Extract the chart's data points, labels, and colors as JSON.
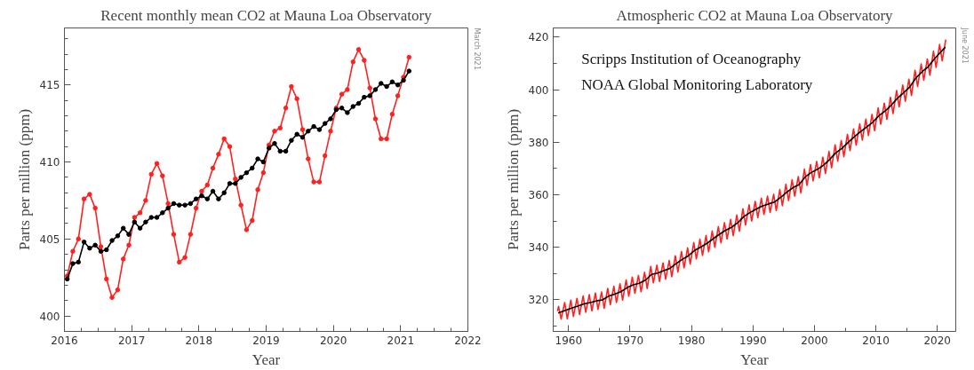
{
  "chart_data": [
    {
      "type": "line",
      "title": "Recent monthly mean CO2 at Mauna Loa Observatory",
      "xlabel": "Year",
      "ylabel": "Parts per million (ppm)",
      "xlim": [
        2016,
        2022
      ],
      "ylim": [
        399,
        418.7
      ],
      "xticks": [
        2016,
        2017,
        2018,
        2019,
        2020,
        2021,
        2022
      ],
      "yticks": [
        400,
        405,
        410,
        415
      ],
      "marker": "circle",
      "grid": false,
      "annotations": [
        "March 2021"
      ],
      "series": [
        {
          "color": "#ff2020",
          "x": [
            2016.042,
            2016.125,
            2016.208,
            2016.292,
            2016.375,
            2016.458,
            2016.542,
            2016.625,
            2016.708,
            2016.792,
            2016.875,
            2016.958,
            2017.042,
            2017.125,
            2017.208,
            2017.292,
            2017.375,
            2017.458,
            2017.542,
            2017.625,
            2017.708,
            2017.792,
            2017.875,
            2017.958,
            2018.042,
            2018.125,
            2018.208,
            2018.292,
            2018.375,
            2018.458,
            2018.542,
            2018.625,
            2018.708,
            2018.792,
            2018.875,
            2018.958,
            2019.042,
            2019.125,
            2019.208,
            2019.292,
            2019.375,
            2019.458,
            2019.542,
            2019.625,
            2019.708,
            2019.792,
            2019.875,
            2019.958,
            2020.042,
            2020.125,
            2020.208,
            2020.292,
            2020.375,
            2020.458,
            2020.542,
            2020.625,
            2020.708,
            2020.792,
            2020.875,
            2020.958,
            2021.042,
            2021.125
          ],
          "values": [
            402.6,
            404.2,
            405.0,
            407.6,
            407.9,
            407.0,
            404.5,
            402.4,
            401.2,
            401.7,
            403.7,
            404.6,
            406.4,
            406.7,
            407.5,
            409.2,
            409.9,
            409.1,
            407.3,
            405.3,
            403.5,
            403.8,
            405.3,
            407.0,
            408.1,
            408.5,
            409.6,
            410.5,
            411.5,
            411.0,
            408.9,
            407.2,
            405.6,
            406.2,
            408.2,
            409.3,
            411.1,
            412.0,
            412.2,
            413.5,
            414.9,
            414.1,
            412.1,
            410.2,
            408.7,
            408.7,
            410.4,
            412.0,
            413.5,
            414.4,
            414.7,
            416.5,
            417.3,
            416.6,
            414.8,
            412.8,
            411.5,
            411.5,
            413.1,
            414.3,
            415.5,
            416.8
          ]
        },
        {
          "color": "#000000",
          "x": [
            2016.042,
            2016.125,
            2016.208,
            2016.292,
            2016.375,
            2016.458,
            2016.542,
            2016.625,
            2016.708,
            2016.792,
            2016.875,
            2016.958,
            2017.042,
            2017.125,
            2017.208,
            2017.292,
            2017.375,
            2017.458,
            2017.542,
            2017.625,
            2017.708,
            2017.792,
            2017.875,
            2017.958,
            2018.042,
            2018.125,
            2018.208,
            2018.292,
            2018.375,
            2018.458,
            2018.542,
            2018.625,
            2018.708,
            2018.792,
            2018.875,
            2018.958,
            2019.042,
            2019.125,
            2019.208,
            2019.292,
            2019.375,
            2019.458,
            2019.542,
            2019.625,
            2019.708,
            2019.792,
            2019.875,
            2019.958,
            2020.042,
            2020.125,
            2020.208,
            2020.292,
            2020.375,
            2020.458,
            2020.542,
            2020.625,
            2020.708,
            2020.792,
            2020.875,
            2020.958,
            2021.042,
            2021.125
          ],
          "values": [
            402.4,
            403.4,
            403.5,
            404.8,
            404.4,
            404.6,
            404.2,
            404.3,
            404.9,
            405.2,
            405.7,
            405.3,
            406.1,
            405.7,
            406.1,
            406.4,
            406.4,
            406.7,
            407.0,
            407.3,
            407.2,
            407.2,
            407.3,
            407.6,
            407.8,
            407.6,
            408.1,
            407.6,
            408.0,
            408.6,
            408.6,
            409.0,
            409.3,
            409.6,
            410.2,
            410.0,
            410.9,
            411.2,
            410.7,
            410.7,
            411.4,
            411.8,
            411.6,
            412.0,
            412.3,
            412.1,
            412.5,
            412.8,
            413.4,
            413.5,
            413.2,
            413.6,
            413.8,
            414.2,
            414.3,
            414.7,
            415.1,
            414.9,
            415.2,
            415.0,
            415.3,
            415.9
          ]
        }
      ]
    },
    {
      "type": "line",
      "title": "Atmospheric CO2 at Mauna Loa Observatory",
      "xlabel": "Year",
      "ylabel": "Parts per million (ppm)",
      "xlim": [
        1957.5,
        2023
      ],
      "ylim": [
        308,
        423.5
      ],
      "xticks": [
        1960,
        1970,
        1980,
        1990,
        2000,
        2010,
        2020
      ],
      "yticks": [
        320,
        340,
        360,
        380,
        400,
        420
      ],
      "grid": false,
      "annotations": [
        "Scripps Institution of Oceanography",
        "NOAA Global Monitoring Laboratory",
        "June 2021"
      ],
      "series": [
        {
          "color": "#ff2020",
          "x": [
            1958.2,
            1958.37,
            1958.79,
            1959.37,
            1959.79,
            1960.37,
            1960.79,
            1961.37,
            1961.79,
            1962.37,
            1962.79,
            1963.37,
            1963.79,
            1964.37,
            1964.79,
            1965.37,
            1965.79,
            1966.37,
            1966.79,
            1967.37,
            1967.79,
            1968.37,
            1968.79,
            1969.37,
            1969.79,
            1970.37,
            1970.79,
            1971.37,
            1971.79,
            1972.37,
            1972.79,
            1973.37,
            1973.79,
            1974.37,
            1974.79,
            1975.37,
            1975.79,
            1976.37,
            1976.79,
            1977.37,
            1977.79,
            1978.37,
            1978.79,
            1979.37,
            1979.79,
            1980.37,
            1980.79,
            1981.37,
            1981.79,
            1982.37,
            1982.79,
            1983.37,
            1983.79,
            1984.37,
            1984.79,
            1985.37,
            1985.79,
            1986.37,
            1986.79,
            1987.37,
            1987.79,
            1988.37,
            1988.79,
            1989.37,
            1989.79,
            1990.37,
            1990.79,
            1991.37,
            1991.79,
            1992.37,
            1992.79,
            1993.37,
            1993.79,
            1994.37,
            1994.79,
            1995.37,
            1995.79,
            1996.37,
            1996.79,
            1997.37,
            1997.79,
            1998.37,
            1998.79,
            1999.37,
            1999.79,
            2000.37,
            2000.79,
            2001.37,
            2001.79,
            2002.37,
            2002.79,
            2003.37,
            2003.79,
            2004.37,
            2004.79,
            2005.37,
            2005.79,
            2006.37,
            2006.79,
            2007.37,
            2007.79,
            2008.37,
            2008.79,
            2009.37,
            2009.79,
            2010.37,
            2010.79,
            2011.37,
            2011.79,
            2012.37,
            2012.79,
            2013.37,
            2013.79,
            2014.37,
            2014.79,
            2015.37,
            2015.79,
            2016.37,
            2016.79,
            2017.37,
            2017.79,
            2018.37,
            2018.79,
            2019.37,
            2019.79,
            2020.37,
            2020.79,
            2021.37
          ],
          "values": [
            315.7,
            317.5,
            312.7,
            319.0,
            312.8,
            319.9,
            313.7,
            320.6,
            314.4,
            321.5,
            315.3,
            322.0,
            315.8,
            322.6,
            316.4,
            323.0,
            316.8,
            324.4,
            318.2,
            325.2,
            319.0,
            326.1,
            319.9,
            327.6,
            321.4,
            328.7,
            322.5,
            329.3,
            323.1,
            330.5,
            324.3,
            332.7,
            326.5,
            333.2,
            327.0,
            334.1,
            327.9,
            335.0,
            328.8,
            336.8,
            330.6,
            338.4,
            332.2,
            339.8,
            333.6,
            341.8,
            335.6,
            343.1,
            336.9,
            344.5,
            338.3,
            346.2,
            340.0,
            347.9,
            341.7,
            349.4,
            343.2,
            350.6,
            344.4,
            352.3,
            346.1,
            354.7,
            348.5,
            356.2,
            350.0,
            357.5,
            351.3,
            358.7,
            352.5,
            359.5,
            353.3,
            360.2,
            354.0,
            362.0,
            355.8,
            364.0,
            357.8,
            365.7,
            359.5,
            366.9,
            360.7,
            369.8,
            363.6,
            371.5,
            365.3,
            372.7,
            366.5,
            374.3,
            368.1,
            376.5,
            370.3,
            379.0,
            372.8,
            380.7,
            374.5,
            383.0,
            376.8,
            385.1,
            378.9,
            387.0,
            380.8,
            388.8,
            382.6,
            390.6,
            384.4,
            393.1,
            386.9,
            394.9,
            388.7,
            397.1,
            390.9,
            399.7,
            393.5,
            401.8,
            395.6,
            404.0,
            397.8,
            407.4,
            401.2,
            409.8,
            403.6,
            411.7,
            405.5,
            414.7,
            408.5,
            417.2,
            411.0,
            419.1
          ]
        },
        {
          "color": "#000000",
          "x": [
            1958.3,
            1959.5,
            1960.5,
            1961.5,
            1962.5,
            1963.5,
            1964.5,
            1965.5,
            1966.5,
            1967.5,
            1968.5,
            1969.5,
            1970.5,
            1971.5,
            1972.5,
            1973.5,
            1974.5,
            1975.5,
            1976.5,
            1977.5,
            1978.5,
            1979.5,
            1980.5,
            1981.5,
            1982.5,
            1983.5,
            1984.5,
            1985.5,
            1986.5,
            1987.5,
            1988.5,
            1989.5,
            1990.5,
            1991.5,
            1992.5,
            1993.5,
            1994.5,
            1995.5,
            1996.5,
            1997.5,
            1998.5,
            1999.5,
            2000.5,
            2001.5,
            2002.5,
            2003.5,
            2004.5,
            2005.5,
            2006.5,
            2007.5,
            2008.5,
            2009.5,
            2010.5,
            2011.5,
            2012.5,
            2013.5,
            2014.5,
            2015.5,
            2016.5,
            2017.5,
            2018.5,
            2019.5,
            2020.5,
            2021.3
          ],
          "values": [
            315.0,
            316.0,
            316.9,
            317.6,
            318.5,
            319.0,
            319.6,
            320.0,
            321.4,
            322.2,
            323.1,
            324.6,
            325.7,
            326.3,
            327.5,
            329.7,
            330.2,
            331.1,
            332.0,
            333.8,
            335.4,
            336.8,
            338.8,
            340.1,
            341.5,
            343.2,
            344.9,
            346.4,
            347.6,
            349.3,
            351.7,
            353.2,
            354.5,
            355.7,
            356.5,
            357.2,
            359.0,
            361.0,
            362.7,
            363.9,
            366.8,
            368.5,
            369.7,
            371.3,
            373.5,
            376.0,
            377.7,
            380.0,
            382.1,
            384.0,
            385.8,
            387.6,
            390.1,
            391.9,
            394.1,
            396.7,
            398.8,
            401.0,
            404.4,
            406.8,
            408.7,
            411.7,
            414.2,
            416.2
          ]
        }
      ]
    }
  ]
}
